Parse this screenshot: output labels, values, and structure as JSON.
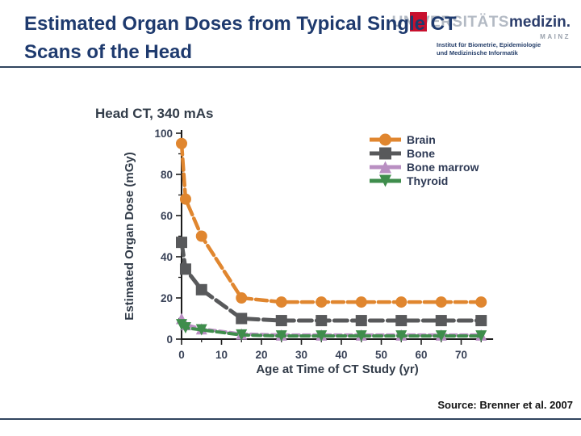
{
  "slide": {
    "title": "Estimated Organ Doses from Typical Single CT Scans of the Head",
    "source": "Source: Brenner et al. 2007"
  },
  "logo": {
    "university_gray": "UNIVERSITÄTS",
    "university_bold": "medizin.",
    "city": "MAINZ",
    "institute_line1": "Institut für Biometrie, Epidemiologie",
    "institute_line2": "und Medizinische Informatik",
    "red_square_color": "#c8102e",
    "navy_color": "#1e3a6e"
  },
  "chart_data": {
    "type": "line",
    "title": "Head CT, 340 mAs",
    "xlabel": "Age at Time of CT Study (yr)",
    "ylabel": "Estimated Organ Dose (mGy)",
    "x": [
      0,
      1,
      5,
      15,
      25,
      35,
      45,
      55,
      65,
      75
    ],
    "series": [
      {
        "name": "Brain",
        "color": "#E0862F",
        "marker": "circle",
        "values": [
          95,
          68,
          50,
          20,
          18,
          18,
          18,
          18,
          18,
          18
        ]
      },
      {
        "name": "Bone",
        "color": "#58595B",
        "marker": "square",
        "values": [
          47,
          34,
          24,
          10,
          9,
          9,
          9,
          9,
          9,
          9
        ]
      },
      {
        "name": "Bone marrow",
        "color": "#B98FC2",
        "marker": "triangle-up",
        "values": [
          10,
          7,
          5,
          2.5,
          2,
          2,
          2,
          2,
          2,
          2
        ]
      },
      {
        "name": "Thyroid",
        "color": "#3F8D4C",
        "marker": "triangle-down",
        "values": [
          7,
          5.5,
          4.5,
          2,
          1.5,
          1.5,
          1.5,
          1.5,
          1.5,
          1.5
        ]
      }
    ],
    "xlim": [
      0,
      78
    ],
    "ylim": [
      0,
      100
    ],
    "x_major_ticks": [
      0,
      10,
      20,
      30,
      40,
      50,
      60,
      70
    ],
    "x_minor_ticks": [
      5,
      15,
      25,
      35,
      45,
      55,
      65,
      75
    ],
    "y_major_ticks": [
      0,
      20,
      40,
      60,
      80,
      100
    ],
    "y_minor_ticks": [
      10,
      30,
      50,
      70,
      90
    ],
    "grid": false,
    "legend_position": "upper right"
  }
}
